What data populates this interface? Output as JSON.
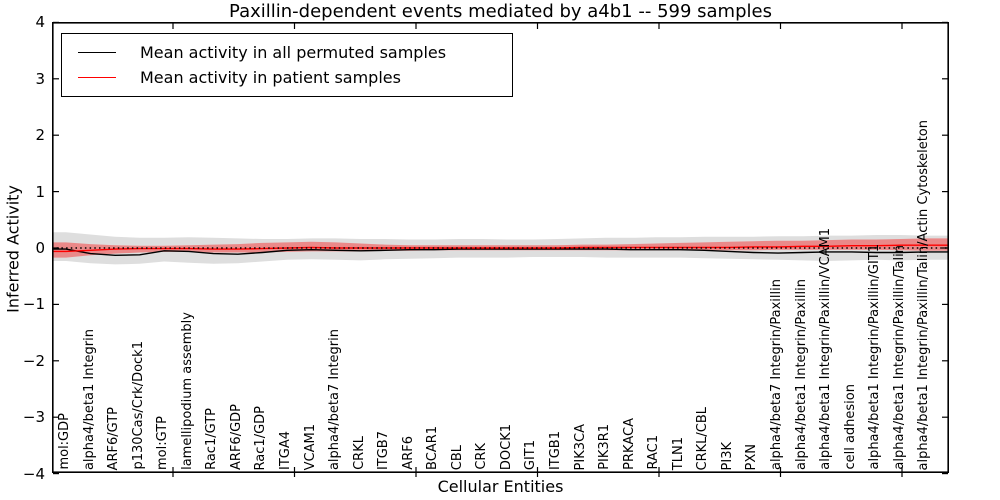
{
  "chart_data": {
    "type": "line",
    "title": "Paxillin-dependent events mediated by a4b1 -- 599 samples",
    "xlabel": "Cellular Entities",
    "ylabel": "Inferred Activity",
    "ylim": [
      -4,
      4
    ],
    "yticks": [
      4,
      3,
      2,
      1,
      0,
      -1,
      -2,
      -3,
      -4
    ],
    "grid": false,
    "legend_position": "upper left",
    "frame_color": "#000000",
    "categories": [
      "mol:GDP",
      "alpha4/beta1 Integrin",
      "ARF6/GTP",
      "p130Cas/Crk/Dock1",
      "mol:GTP",
      "lamellipodium assembly",
      "Rac1/GTP",
      "ARF6/GDP",
      "Rac1/GDP",
      "ITGA4",
      "VCAM1",
      "alpha4/beta7 Integrin",
      "CRKL",
      "ITGB7",
      "ARF6",
      "BCAR1",
      "CBL",
      "CRK",
      "DOCK1",
      "GIT1",
      "ITGB1",
      "PIK3CA",
      "PIK3R1",
      "PRKACA",
      "RAC1",
      "TLN1",
      "CRKL/CBL",
      "PI3K",
      "PXN",
      "alpha4/beta7 Integrin/Paxillin",
      "alpha4/beta1 Integrin/Paxillin",
      "alpha4/beta1 Integrin/Paxillin/VCAM1",
      "cell adhesion",
      "alpha4/beta1 Integrin/Paxillin/GIT1",
      "alpha4/beta1 Integrin/Paxillin/Talin",
      "alpha4/beta1 Integrin/Paxillin/Talin/Actin Cytoskeleton"
    ],
    "series": [
      {
        "name": "Mean activity in all permuted samples",
        "color": "#000000",
        "line_style": "solid",
        "values": [
          -0.02,
          -0.1,
          -0.13,
          -0.12,
          -0.05,
          -0.06,
          -0.1,
          -0.11,
          -0.08,
          -0.04,
          -0.03,
          -0.04,
          -0.05,
          -0.04,
          -0.03,
          -0.03,
          -0.02,
          -0.02,
          -0.02,
          -0.02,
          -0.02,
          -0.02,
          -0.02,
          -0.03,
          -0.03,
          -0.03,
          -0.04,
          -0.06,
          -0.08,
          -0.09,
          -0.08,
          -0.07,
          -0.07,
          -0.08,
          -0.08,
          -0.07
        ]
      },
      {
        "name": "Mean activity in patient samples",
        "color": "#ff0000",
        "line_style": "solid",
        "values": [
          -0.06,
          -0.04,
          -0.02,
          -0.01,
          -0.01,
          -0.01,
          -0.02,
          -0.02,
          -0.01,
          0.0,
          0.01,
          0.0,
          0.0,
          0.0,
          0.0,
          0.0,
          0.0,
          0.0,
          0.0,
          0.0,
          0.0,
          0.01,
          0.01,
          0.01,
          0.01,
          0.01,
          0.01,
          0.01,
          0.02,
          0.02,
          0.03,
          0.03,
          0.04,
          0.04,
          0.05,
          0.05
        ]
      },
      {
        "name": "zero reference",
        "color": "#000000",
        "line_style": "dotted",
        "constant": 0
      }
    ],
    "bands": [
      {
        "name": "permuted samples spread",
        "color": "#000000",
        "alpha": 0.13,
        "upper": [
          0.28,
          0.24,
          0.2,
          0.18,
          0.18,
          0.19,
          0.18,
          0.17,
          0.16,
          0.16,
          0.17,
          0.17,
          0.16,
          0.16,
          0.15,
          0.15,
          0.16,
          0.16,
          0.15,
          0.15,
          0.16,
          0.17,
          0.18,
          0.18,
          0.19,
          0.19,
          0.2,
          0.2,
          0.2,
          0.21,
          0.21,
          0.22,
          0.22,
          0.23,
          0.23,
          0.22
        ],
        "lower": [
          -0.23,
          -0.27,
          -0.29,
          -0.28,
          -0.24,
          -0.26,
          -0.28,
          -0.27,
          -0.24,
          -0.21,
          -0.2,
          -0.21,
          -0.22,
          -0.2,
          -0.19,
          -0.18,
          -0.17,
          -0.17,
          -0.17,
          -0.16,
          -0.16,
          -0.16,
          -0.17,
          -0.17,
          -0.17,
          -0.17,
          -0.18,
          -0.19,
          -0.2,
          -0.21,
          -0.22,
          -0.23,
          -0.22,
          -0.21,
          -0.22,
          -0.21
        ]
      },
      {
        "name": "patient samples spread",
        "color": "#ff0000",
        "alpha": 0.38,
        "upper": [
          0.1,
          0.07,
          0.05,
          0.04,
          0.04,
          0.05,
          0.06,
          0.07,
          0.09,
          0.1,
          0.11,
          0.1,
          0.08,
          0.06,
          0.05,
          0.05,
          0.05,
          0.05,
          0.05,
          0.05,
          0.05,
          0.06,
          0.06,
          0.07,
          0.08,
          0.09,
          0.1,
          0.11,
          0.12,
          0.13,
          0.13,
          0.14,
          0.15,
          0.15,
          0.16,
          0.17
        ],
        "lower": [
          -0.17,
          -0.13,
          -0.1,
          -0.08,
          -0.07,
          -0.07,
          -0.08,
          -0.08,
          -0.08,
          -0.07,
          -0.06,
          -0.06,
          -0.06,
          -0.05,
          -0.05,
          -0.04,
          -0.04,
          -0.04,
          -0.04,
          -0.04,
          -0.04,
          -0.04,
          -0.04,
          -0.04,
          -0.04,
          -0.04,
          -0.04,
          -0.04,
          -0.04,
          -0.03,
          -0.03,
          -0.03,
          -0.03,
          -0.03,
          -0.04,
          -0.05
        ]
      }
    ]
  }
}
